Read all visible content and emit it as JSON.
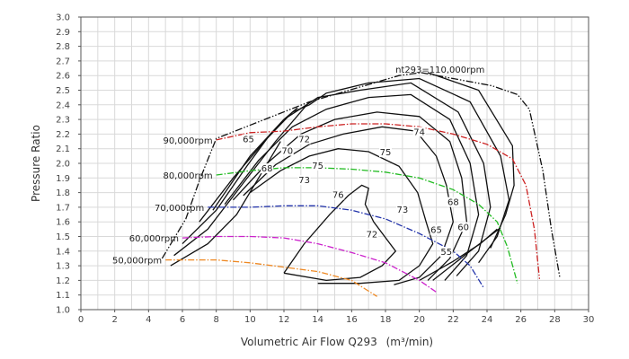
{
  "chart_data": {
    "type": "line",
    "xlabel": "Volumetric Air Flow Q293",
    "xlabel_unit": "(m³/min)",
    "ylabel": "Pressure Ratio",
    "xlim": [
      0,
      30
    ],
    "ylim": [
      1.0,
      3.0
    ],
    "x_ticks": [
      "0",
      "2",
      "4",
      "6",
      "8",
      "10",
      "12",
      "14",
      "16",
      "18",
      "20",
      "22",
      "24",
      "26",
      "28",
      "30"
    ],
    "y_ticks": [
      "1.0",
      "1.1",
      "1.2",
      "1.3",
      "1.4",
      "1.5",
      "1.6",
      "1.7",
      "1.8",
      "1.9",
      "2.0",
      "2.1",
      "2.2",
      "2.3",
      "2.4",
      "2.5",
      "2.6",
      "2.7",
      "2.8",
      "2.9",
      "3.0"
    ],
    "grid": true,
    "surge_line": {
      "label": "nt293=110,000rpm",
      "color": "#111111",
      "points": [
        [
          4.8,
          1.35
        ],
        [
          6.2,
          1.62
        ],
        [
          7.0,
          1.88
        ],
        [
          8.0,
          2.17
        ],
        [
          13.5,
          2.42
        ],
        [
          18.8,
          2.6
        ],
        [
          20.1,
          2.62
        ]
      ]
    },
    "max_speed_line": {
      "color": "#111111",
      "points": [
        [
          20.1,
          2.62
        ],
        [
          22.0,
          2.58
        ],
        [
          24.3,
          2.53
        ],
        [
          25.8,
          2.47
        ],
        [
          26.5,
          2.37
        ],
        [
          27.3,
          1.95
        ],
        [
          27.8,
          1.55
        ],
        [
          28.3,
          1.22
        ]
      ]
    },
    "speed_lines": [
      {
        "label": "90,000rpm",
        "color": "#cc2222",
        "points": [
          [
            8.0,
            2.16
          ],
          [
            10,
            2.21
          ],
          [
            12,
            2.22
          ],
          [
            14,
            2.25
          ],
          [
            16,
            2.27
          ],
          [
            18,
            2.27
          ],
          [
            20,
            2.25
          ],
          [
            22,
            2.2
          ],
          [
            24,
            2.13
          ],
          [
            25.5,
            2.03
          ],
          [
            26.3,
            1.85
          ],
          [
            26.8,
            1.55
          ],
          [
            27.1,
            1.21
          ]
        ]
      },
      {
        "label": "80,000rpm",
        "color": "#22bb22",
        "points": [
          [
            8.0,
            1.92
          ],
          [
            10,
            1.95
          ],
          [
            12,
            1.97
          ],
          [
            14,
            1.97
          ],
          [
            16,
            1.96
          ],
          [
            18,
            1.94
          ],
          [
            20,
            1.9
          ],
          [
            22,
            1.82
          ],
          [
            23.5,
            1.72
          ],
          [
            24.6,
            1.6
          ],
          [
            25.2,
            1.43
          ],
          [
            25.8,
            1.18
          ]
        ]
      },
      {
        "label": "70,000rpm",
        "color": "#2233aa",
        "points": [
          [
            7.5,
            1.7
          ],
          [
            10,
            1.7
          ],
          [
            12,
            1.71
          ],
          [
            14,
            1.71
          ],
          [
            16,
            1.68
          ],
          [
            18,
            1.62
          ],
          [
            20,
            1.52
          ],
          [
            22,
            1.4
          ],
          [
            23,
            1.3
          ],
          [
            23.8,
            1.15
          ]
        ]
      },
      {
        "label": "60,000rpm",
        "color": "#cc22cc",
        "points": [
          [
            6.0,
            1.49
          ],
          [
            8,
            1.5
          ],
          [
            10,
            1.5
          ],
          [
            12,
            1.49
          ],
          [
            14,
            1.45
          ],
          [
            16,
            1.39
          ],
          [
            18,
            1.32
          ],
          [
            20,
            1.2
          ],
          [
            21,
            1.12
          ]
        ]
      },
      {
        "label": "50,000rpm",
        "color": "#ee8822",
        "points": [
          [
            5.0,
            1.34
          ],
          [
            6,
            1.34
          ],
          [
            8,
            1.34
          ],
          [
            10,
            1.32
          ],
          [
            12,
            1.29
          ],
          [
            14,
            1.26
          ],
          [
            16,
            1.2
          ],
          [
            17.5,
            1.09
          ]
        ]
      }
    ],
    "efficiency_islands": [
      {
        "label": "76",
        "points": [
          [
            12.0,
            1.25
          ],
          [
            13.2,
            1.45
          ],
          [
            14.7,
            1.65
          ],
          [
            15.8,
            1.78
          ],
          [
            16.6,
            1.85
          ],
          [
            17.0,
            1.83
          ],
          [
            16.8,
            1.72
          ],
          [
            17.3,
            1.6
          ],
          [
            18.6,
            1.4
          ],
          [
            17.8,
            1.3
          ],
          [
            16.5,
            1.22
          ],
          [
            14.5,
            1.2
          ],
          [
            12.0,
            1.25
          ]
        ]
      },
      {
        "label": "75",
        "points": [
          [
            10.0,
            1.8
          ],
          [
            11.8,
            1.95
          ],
          [
            13.5,
            2.05
          ],
          [
            15.2,
            2.1
          ],
          [
            17.0,
            2.08
          ],
          [
            18.8,
            1.98
          ],
          [
            19.9,
            1.8
          ],
          [
            20.4,
            1.6
          ],
          [
            20.8,
            1.45
          ],
          [
            20.0,
            1.3
          ],
          [
            18.8,
            1.2
          ],
          [
            16.5,
            1.18
          ],
          [
            14.0,
            1.18
          ]
        ]
      },
      {
        "label": "74",
        "points": [
          [
            9.6,
            1.78
          ],
          [
            11.5,
            1.99
          ],
          [
            13.5,
            2.13
          ],
          [
            15.5,
            2.2
          ],
          [
            17.8,
            2.25
          ],
          [
            19.8,
            2.22
          ],
          [
            21.0,
            2.05
          ],
          [
            21.6,
            1.85
          ],
          [
            22.0,
            1.6
          ],
          [
            21.3,
            1.37
          ],
          [
            20.0,
            1.22
          ],
          [
            18.5,
            1.17
          ]
        ]
      },
      {
        "label": "73",
        "points": [
          [
            9.0,
            1.75
          ],
          [
            11,
            2.0
          ],
          [
            13,
            2.2
          ],
          [
            15,
            2.3
          ],
          [
            17.5,
            2.35
          ],
          [
            20,
            2.32
          ],
          [
            21.8,
            2.15
          ],
          [
            22.5,
            1.9
          ],
          [
            22.8,
            1.6
          ],
          [
            21.8,
            1.35
          ],
          [
            20.5,
            1.2
          ]
        ]
      },
      {
        "label": "72",
        "points": [
          [
            8.5,
            1.72
          ],
          [
            10.5,
            2.02
          ],
          [
            12.5,
            2.25
          ],
          [
            14.5,
            2.37
          ],
          [
            17,
            2.45
          ],
          [
            19.5,
            2.47
          ],
          [
            21.8,
            2.3
          ],
          [
            23,
            2.0
          ],
          [
            23.5,
            1.65
          ],
          [
            22.8,
            1.37
          ],
          [
            21.5,
            1.2
          ]
        ]
      },
      {
        "label": "70",
        "points": [
          [
            7.8,
            1.68
          ],
          [
            10,
            2.05
          ],
          [
            12,
            2.3
          ],
          [
            14,
            2.45
          ],
          [
            16.5,
            2.5
          ],
          [
            19.5,
            2.55
          ],
          [
            22.3,
            2.35
          ],
          [
            23.8,
            2.0
          ],
          [
            24.2,
            1.7
          ],
          [
            23.5,
            1.4
          ],
          [
            22.2,
            1.23
          ]
        ]
      },
      {
        "label": "68",
        "points": [
          [
            7.0,
            1.6
          ],
          [
            9,
            1.9
          ],
          [
            11,
            2.17
          ],
          [
            12.5,
            2.35
          ],
          [
            13.5,
            2.4
          ],
          [
            14.5,
            2.48
          ],
          [
            17,
            2.55
          ],
          [
            20,
            2.58
          ],
          [
            23,
            2.42
          ],
          [
            24.8,
            2.05
          ],
          [
            25.3,
            1.75
          ],
          [
            24.6,
            1.5
          ],
          [
            23.5,
            1.32
          ]
        ]
      },
      {
        "label": "65",
        "points": [
          [
            6.0,
            1.45
          ],
          [
            8,
            1.68
          ],
          [
            9.8,
            1.98
          ],
          [
            11.2,
            2.2
          ],
          [
            12.0,
            2.3
          ],
          [
            12.8,
            2.38
          ]
        ]
      },
      {
        "label": "65",
        "points": [
          [
            20.5,
            2.62
          ],
          [
            23.5,
            2.5
          ],
          [
            25.5,
            2.12
          ],
          [
            25.6,
            1.85
          ],
          [
            25.1,
            1.65
          ],
          [
            24.2,
            1.42
          ]
        ]
      },
      {
        "label": "60",
        "points": [
          [
            5.5,
            1.37
          ],
          [
            7.5,
            1.55
          ],
          [
            9.5,
            1.85
          ],
          [
            11.5,
            2.15
          ],
          [
            13.5,
            2.42
          ]
        ]
      },
      {
        "label": "60",
        "points": [
          [
            20.8,
            1.2
          ],
          [
            23.0,
            1.4
          ],
          [
            24.8,
            1.56
          ]
        ]
      },
      {
        "label": "55",
        "points": [
          [
            5.3,
            1.3
          ],
          [
            7.5,
            1.45
          ],
          [
            9.2,
            1.65
          ],
          [
            10.5,
            1.9
          ],
          [
            11.8,
            2.15
          ]
        ]
      },
      {
        "label": "55",
        "points": [
          [
            20.0,
            1.2
          ],
          [
            22.0,
            1.33
          ],
          [
            23.6,
            1.45
          ],
          [
            24.6,
            1.55
          ]
        ]
      }
    ],
    "annotations": [
      {
        "text": "65",
        "x": 9.9,
        "y": 2.15
      },
      {
        "text": "68",
        "x": 11.0,
        "y": 1.95
      },
      {
        "text": "70",
        "x": 12.2,
        "y": 2.07
      },
      {
        "text": "72",
        "x": 13.2,
        "y": 2.15
      },
      {
        "text": "73",
        "x": 13.2,
        "y": 1.87
      },
      {
        "text": "75",
        "x": 14.0,
        "y": 1.97
      },
      {
        "text": "75",
        "x": 18.0,
        "y": 2.06
      },
      {
        "text": "74",
        "x": 20.0,
        "y": 2.2
      },
      {
        "text": "76",
        "x": 15.2,
        "y": 1.77
      },
      {
        "text": "73",
        "x": 19.0,
        "y": 1.67
      },
      {
        "text": "72",
        "x": 17.2,
        "y": 1.5
      },
      {
        "text": "65",
        "x": 21.0,
        "y": 1.53
      },
      {
        "text": "68",
        "x": 22.0,
        "y": 1.72
      },
      {
        "text": "60",
        "x": 22.6,
        "y": 1.55
      },
      {
        "text": "55",
        "x": 21.6,
        "y": 1.38
      }
    ]
  }
}
